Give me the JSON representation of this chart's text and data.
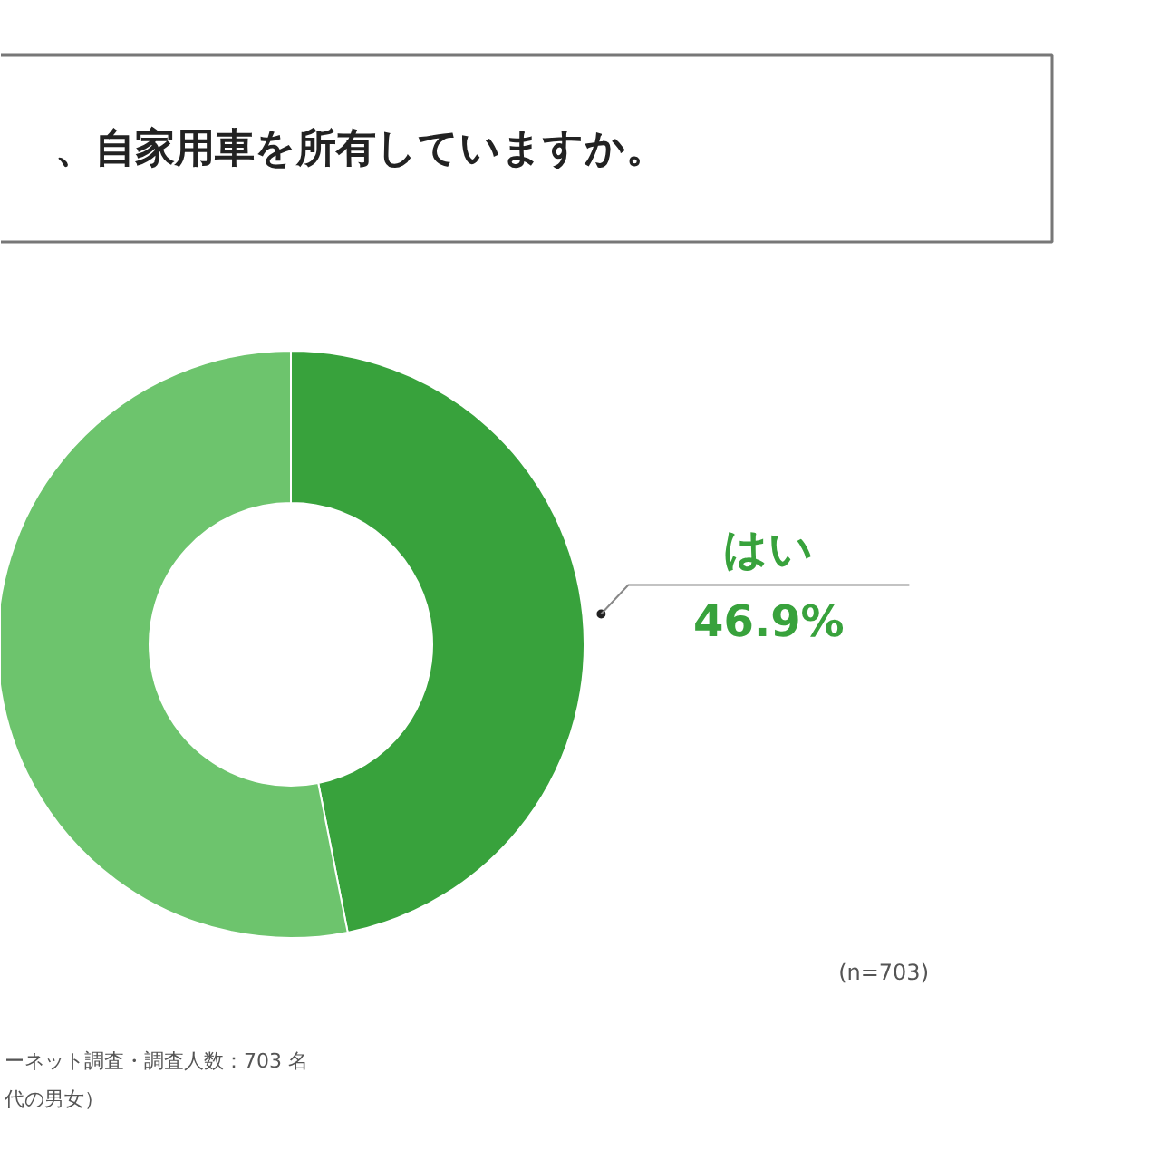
{
  "chart_data": {
    "type": "donut",
    "title": "、自家用車を所有していますか。",
    "categories": [
      "はい",
      null
    ],
    "values": [
      46.9,
      53.1
    ],
    "colors": [
      "#38a23c",
      "#6dc46d"
    ],
    "value_labels": [
      "46.9%",
      null
    ],
    "annotations": [
      "(n=703)",
      "ーネット調査・調査人数：703 名",
      "代の男女）"
    ]
  }
}
